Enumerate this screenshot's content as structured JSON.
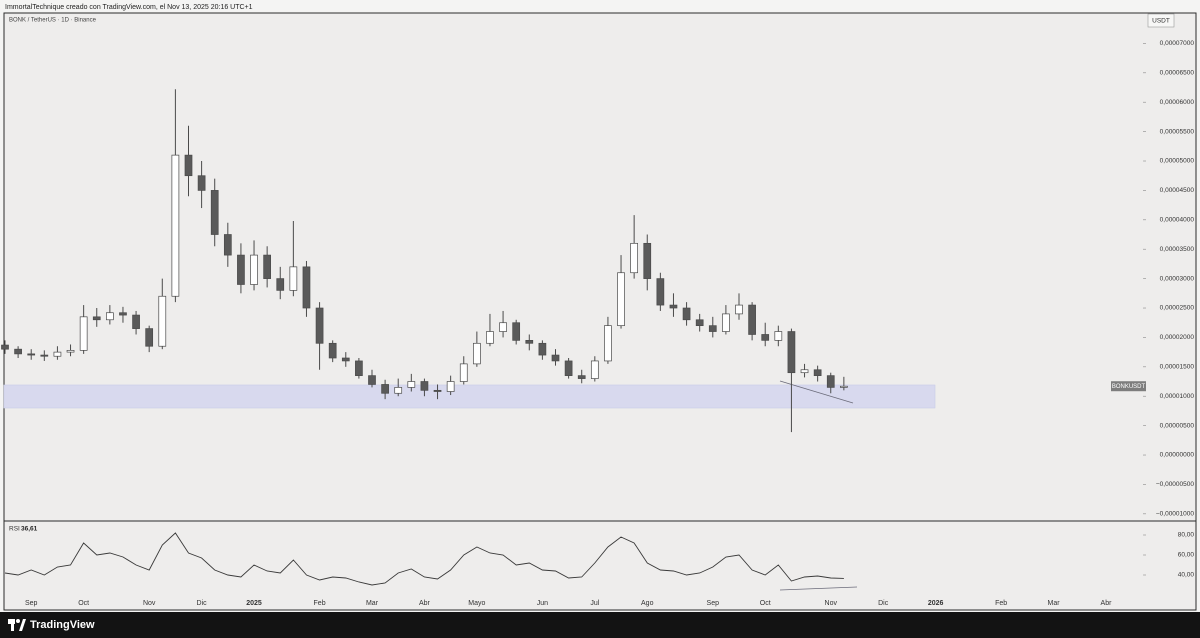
{
  "header": {
    "attribution": "ImmortalTechnique creado con TradingView.com, el Nov 13, 2025 20:16 UTC+1",
    "footer_brand": "TradingView"
  },
  "chart_data": [
    {
      "type": "candlestick",
      "title": "BONK / TetherUS · 1D · Binance",
      "currency": "USDT",
      "categories": [
        null,
        null,
        "Sep",
        null,
        null,
        null,
        "Oct",
        null,
        null,
        null,
        null,
        "Nov",
        null,
        null,
        null,
        "Dic",
        null,
        null,
        null,
        "2025",
        null,
        null,
        null,
        null,
        "Feb",
        null,
        null,
        null,
        "Mar",
        null,
        null,
        null,
        "Abr",
        null,
        null,
        null,
        "Mayo",
        null,
        null,
        null,
        null,
        "Jun",
        null,
        null,
        null,
        "Jul",
        null,
        null,
        null,
        "Ago",
        null,
        null,
        null,
        null,
        "Sep",
        null,
        null,
        null,
        "Oct",
        null,
        null,
        null,
        null,
        "Nov",
        null,
        null,
        null,
        "Dic",
        null,
        null,
        null,
        "2026",
        null,
        null,
        null,
        null,
        "Feb",
        null,
        null,
        null,
        "Mar",
        null,
        null,
        null,
        "Abr"
      ],
      "series": [
        {
          "name": "BONKUSDT",
          "up_color": "#ffffff",
          "down_color": "#5a5a5a",
          "wick_color": "#4a4a4a",
          "open": [
            1.87e-05,
            1.8e-05,
            1.72e-05,
            1.7e-05,
            1.68e-05,
            1.75e-05,
            1.78e-05,
            2.35e-05,
            2.3e-05,
            2.42e-05,
            2.38e-05,
            2.15e-05,
            1.85e-05,
            2.7e-05,
            5.1e-05,
            4.75e-05,
            4.5e-05,
            3.75e-05,
            3.4e-05,
            2.9e-05,
            3.4e-05,
            3e-05,
            2.8e-05,
            3.2e-05,
            2.5e-05,
            1.9e-05,
            1.65e-05,
            1.6e-05,
            1.35e-05,
            1.2e-05,
            1.05e-05,
            1.15e-05,
            1.25e-05,
            1.1e-05,
            1.08e-05,
            1.25e-05,
            1.55e-05,
            1.9e-05,
            2.1e-05,
            2.25e-05,
            1.95e-05,
            1.9e-05,
            1.7e-05,
            1.6e-05,
            1.35e-05,
            1.3e-05,
            1.6e-05,
            2.2e-05,
            3.1e-05,
            3.6e-05,
            3e-05,
            2.55e-05,
            2.5e-05,
            2.3e-05,
            2.2e-05,
            2.1e-05,
            2.4e-05,
            2.55e-05,
            2.05e-05,
            1.95e-05,
            2.1e-05,
            1.4e-05,
            1.45e-05,
            1.35e-05,
            1.15e-05,
            null,
            null,
            null,
            null,
            null,
            null,
            null,
            null,
            null,
            null,
            null,
            null,
            null,
            null,
            null,
            null,
            null,
            null,
            null,
            null
          ],
          "high": [
            1.95e-05,
            1.85e-05,
            1.8e-05,
            1.78e-05,
            1.85e-05,
            1.88e-05,
            2.55e-05,
            2.5e-05,
            2.55e-05,
            2.52e-05,
            2.45e-05,
            2.2e-05,
            3e-05,
            6.22e-05,
            5.6e-05,
            5e-05,
            4.7e-05,
            3.95e-05,
            3.6e-05,
            3.65e-05,
            3.55e-05,
            3.2e-05,
            3.98e-05,
            3.3e-05,
            2.6e-05,
            1.95e-05,
            1.75e-05,
            1.65e-05,
            1.45e-05,
            1.28e-05,
            1.3e-05,
            1.38e-05,
            1.3e-05,
            1.2e-05,
            1.35e-05,
            1.68e-05,
            2.1e-05,
            2.4e-05,
            2.45e-05,
            2.3e-05,
            2.05e-05,
            1.95e-05,
            1.8e-05,
            1.65e-05,
            1.45e-05,
            1.68e-05,
            2.35e-05,
            3.4e-05,
            4.08e-05,
            3.75e-05,
            3.1e-05,
            2.75e-05,
            2.6e-05,
            2.4e-05,
            2.35e-05,
            2.55e-05,
            2.75e-05,
            2.6e-05,
            2.25e-05,
            2.2e-05,
            2.15e-05,
            1.55e-05,
            1.52e-05,
            1.4e-05,
            1.33e-05,
            null,
            null,
            null,
            null,
            null,
            null,
            null,
            null,
            null,
            null,
            null,
            null,
            null,
            null,
            null,
            null,
            null,
            null,
            null,
            null
          ],
          "low": [
            1.72e-05,
            1.65e-05,
            1.62e-05,
            1.6e-05,
            1.62e-05,
            1.68e-05,
            1.72e-05,
            2.18e-05,
            2.22e-05,
            2.25e-05,
            2.05e-05,
            1.75e-05,
            1.8e-05,
            2.6e-05,
            4.4e-05,
            4.2e-05,
            3.55e-05,
            3.2e-05,
            2.75e-05,
            2.8e-05,
            2.85e-05,
            2.65e-05,
            2.7e-05,
            2.35e-05,
            1.45e-05,
            1.58e-05,
            1.5e-05,
            1.3e-05,
            1.15e-05,
            9.5e-06,
            1e-05,
            1.08e-05,
            1e-05,
            9.5e-06,
            1.02e-05,
            1.2e-05,
            1.5e-05,
            1.85e-05,
            2e-05,
            1.88e-05,
            1.78e-05,
            1.62e-05,
            1.52e-05,
            1.3e-05,
            1.22e-05,
            1.25e-05,
            1.55e-05,
            2.15e-05,
            3e-05,
            2.8e-05,
            2.45e-05,
            2.35e-05,
            2.2e-05,
            2.1e-05,
            2e-05,
            2.05e-05,
            2.3e-05,
            1.95e-05,
            1.85e-05,
            1.85e-05,
            3.9e-06,
            1.32e-05,
            1.25e-05,
            1.05e-05,
            1.1e-05,
            null,
            null,
            null,
            null,
            null,
            null,
            null,
            null,
            null,
            null,
            null,
            null,
            null,
            null,
            null,
            null,
            null,
            null,
            null,
            null
          ],
          "close": [
            1.8e-05,
            1.72e-05,
            1.7e-05,
            1.68e-05,
            1.75e-05,
            1.78e-05,
            2.35e-05,
            2.3e-05,
            2.42e-05,
            2.38e-05,
            2.15e-05,
            1.85e-05,
            2.7e-05,
            5.1e-05,
            4.75e-05,
            4.5e-05,
            3.75e-05,
            3.4e-05,
            2.9e-05,
            3.4e-05,
            3e-05,
            2.8e-05,
            3.2e-05,
            2.5e-05,
            1.9e-05,
            1.65e-05,
            1.6e-05,
            1.35e-05,
            1.2e-05,
            1.05e-05,
            1.15e-05,
            1.25e-05,
            1.1e-05,
            1.08e-05,
            1.25e-05,
            1.55e-05,
            1.9e-05,
            2.1e-05,
            2.25e-05,
            1.95e-05,
            1.9e-05,
            1.7e-05,
            1.6e-05,
            1.35e-05,
            1.3e-05,
            1.6e-05,
            2.2e-05,
            3.1e-05,
            3.6e-05,
            3e-05,
            2.55e-05,
            2.5e-05,
            2.3e-05,
            2.2e-05,
            2.1e-05,
            2.4e-05,
            2.55e-05,
            2.05e-05,
            1.95e-05,
            2.1e-05,
            1.4e-05,
            1.45e-05,
            1.35e-05,
            1.15e-05,
            1.17e-05,
            null,
            null,
            null,
            null,
            null,
            null,
            null,
            null,
            null,
            null,
            null,
            null,
            null,
            null,
            null,
            null,
            null,
            null,
            null,
            null
          ]
        }
      ],
      "ylim": [
        -1.105e-05,
        7.517e-05
      ],
      "yticks": [
        {
          "value": -1e-05,
          "label": "−0,00001000"
        },
        {
          "value": -5e-06,
          "label": "−0,00000500"
        },
        {
          "value": 0,
          "label": "0,00000000"
        },
        {
          "value": 5e-06,
          "label": "0,00000500"
        },
        {
          "value": 1e-05,
          "label": "0,00001000"
        },
        {
          "value": 1.5e-05,
          "label": "0,00001500"
        },
        {
          "value": 2e-05,
          "label": "0,00002000"
        },
        {
          "value": 2.5e-05,
          "label": "0,00002500"
        },
        {
          "value": 3e-05,
          "label": "0,00003000"
        },
        {
          "value": 3.5e-05,
          "label": "0,00003500"
        },
        {
          "value": 4e-05,
          "label": "0,00004000"
        },
        {
          "value": 4.5e-05,
          "label": "0,00004500"
        },
        {
          "value": 5e-05,
          "label": "0,00005000"
        },
        {
          "value": 5.5e-05,
          "label": "0,00005500"
        },
        {
          "value": 6e-05,
          "label": "0,00006000"
        },
        {
          "value": 6.5e-05,
          "label": "0,00006500"
        },
        {
          "value": 7e-05,
          "label": "0,00007000"
        }
      ],
      "grid": false
    },
    {
      "type": "line",
      "name": "RSI",
      "color": "#3a3a3a",
      "values": [
        42,
        40,
        45,
        40,
        48,
        50,
        72,
        60,
        62,
        58,
        50,
        45,
        70,
        82,
        62,
        57,
        45,
        40,
        38,
        50,
        44,
        42,
        55,
        40,
        35,
        38,
        37,
        33,
        30,
        32,
        42,
        46,
        38,
        36,
        45,
        60,
        68,
        62,
        60,
        50,
        52,
        45,
        44,
        37,
        38,
        52,
        68,
        78,
        72,
        52,
        45,
        44,
        40,
        42,
        48,
        58,
        60,
        45,
        40,
        50,
        34,
        38,
        39,
        37,
        36.61,
        null,
        null,
        null,
        null,
        null,
        null,
        null,
        null,
        null,
        null,
        null,
        null,
        null,
        null,
        null,
        null,
        null,
        null,
        null,
        null
      ],
      "last_value": {
        "value": 36.61,
        "label": "36,61"
      },
      "ylim": [
        18,
        94
      ],
      "yticks": [
        {
          "value": 40,
          "label": "40,00"
        },
        {
          "value": 60,
          "label": "60,00"
        },
        {
          "value": 80,
          "label": "80,00"
        }
      ]
    }
  ]
}
